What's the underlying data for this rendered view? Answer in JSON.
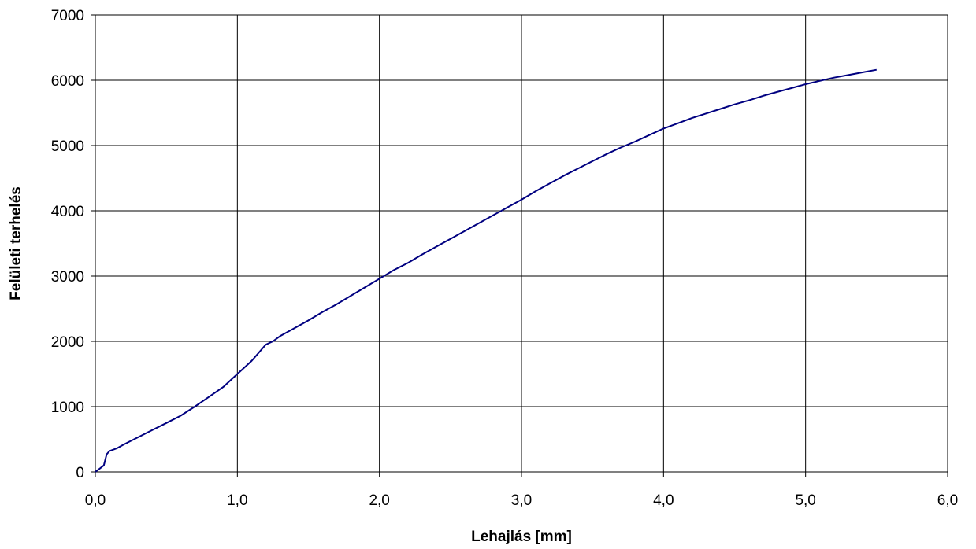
{
  "chart_data": {
    "type": "line",
    "title": "",
    "xlabel": "Lehajlás [mm]",
    "ylabel": "Felületi terhelés",
    "xlim": [
      0,
      6
    ],
    "ylim": [
      0,
      7000
    ],
    "grid": true,
    "legend": "none",
    "x_ticks": [
      0,
      1,
      2,
      3,
      4,
      5,
      6
    ],
    "x_tick_labels": [
      "0,0",
      "1,0",
      "2,0",
      "3,0",
      "4,0",
      "5,0",
      "6,0"
    ],
    "y_ticks": [
      0,
      1000,
      2000,
      3000,
      4000,
      5000,
      6000,
      7000
    ],
    "y_tick_labels": [
      "0",
      "1000",
      "2000",
      "3000",
      "4000",
      "5000",
      "6000",
      "7000"
    ],
    "series": [
      {
        "color": "#000080",
        "x": [
          0.0,
          0.03,
          0.06,
          0.08,
          0.1,
          0.15,
          0.2,
          0.3,
          0.4,
          0.5,
          0.6,
          0.7,
          0.8,
          0.9,
          1.0,
          1.1,
          1.2,
          1.25,
          1.3,
          1.4,
          1.5,
          1.6,
          1.7,
          1.8,
          1.9,
          2.0,
          2.1,
          2.2,
          2.3,
          2.4,
          2.5,
          2.6,
          2.7,
          2.8,
          2.9,
          3.0,
          3.1,
          3.2,
          3.3,
          3.4,
          3.5,
          3.6,
          3.7,
          3.8,
          3.9,
          4.0,
          4.1,
          4.2,
          4.3,
          4.4,
          4.5,
          4.6,
          4.7,
          4.8,
          4.9,
          5.0,
          5.1,
          5.2,
          5.3,
          5.4,
          5.5
        ],
        "y": [
          0,
          50,
          100,
          270,
          320,
          360,
          420,
          530,
          640,
          750,
          860,
          1000,
          1150,
          1300,
          1500,
          1700,
          1950,
          2000,
          2080,
          2200,
          2320,
          2450,
          2570,
          2700,
          2830,
          2960,
          3090,
          3200,
          3330,
          3450,
          3570,
          3690,
          3810,
          3930,
          4050,
          4170,
          4300,
          4420,
          4540,
          4650,
          4760,
          4870,
          4970,
          5060,
          5160,
          5260,
          5340,
          5420,
          5490,
          5560,
          5630,
          5690,
          5760,
          5820,
          5880,
          5940,
          5990,
          6040,
          6080,
          6120,
          6160
        ]
      }
    ]
  }
}
